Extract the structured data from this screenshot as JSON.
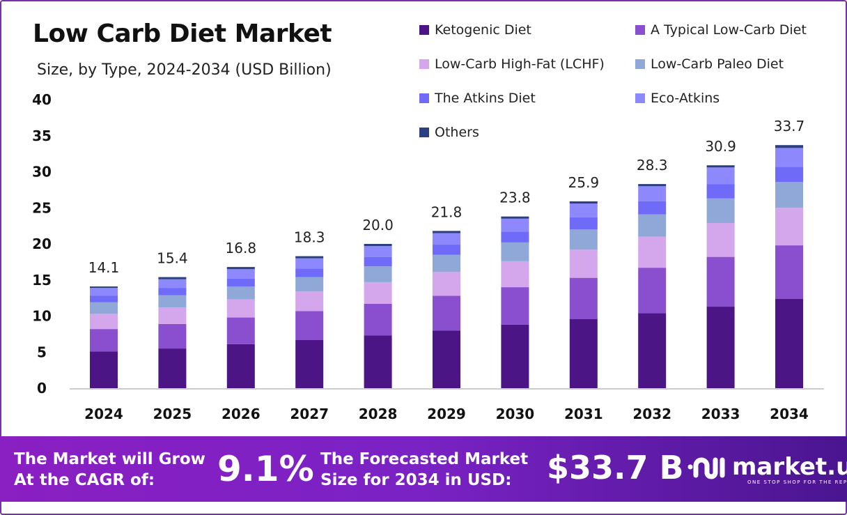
{
  "chart_data": {
    "type": "bar",
    "stacked": true,
    "title": "Low Carb Diet Market",
    "subtitle": "Size, by Type, 2024-2034 (USD Billion)",
    "categories": [
      "2024",
      "2025",
      "2026",
      "2027",
      "2028",
      "2029",
      "2030",
      "2031",
      "2032",
      "2033",
      "2034"
    ],
    "totals": [
      "14.1",
      "15.4",
      "16.8",
      "18.3",
      "20.0",
      "21.8",
      "23.8",
      "25.9",
      "28.3",
      "30.9",
      "33.7"
    ],
    "series": [
      {
        "name": "Ketogenic Diet",
        "color": "#4b1585",
        "values": [
          5.1,
          5.5,
          6.1,
          6.7,
          7.3,
          8.0,
          8.8,
          9.6,
          10.4,
          11.3,
          12.4
        ]
      },
      {
        "name": "A Typical Low-Carb Diet",
        "color": "#8a4fcf",
        "values": [
          3.1,
          3.4,
          3.7,
          4.0,
          4.4,
          4.8,
          5.2,
          5.7,
          6.3,
          6.9,
          7.4
        ]
      },
      {
        "name": "Low-Carb High-Fat (LCHF)",
        "color": "#d4a6ec",
        "values": [
          2.1,
          2.3,
          2.5,
          2.7,
          3.0,
          3.3,
          3.6,
          3.9,
          4.3,
          4.7,
          5.2
        ]
      },
      {
        "name": "Low-Carb Paleo Diet",
        "color": "#8fa8d8",
        "values": [
          1.6,
          1.7,
          1.8,
          2.0,
          2.2,
          2.4,
          2.6,
          2.8,
          3.1,
          3.4,
          3.6
        ]
      },
      {
        "name": "The Atkins Diet",
        "color": "#6f6af8",
        "values": [
          0.9,
          1.0,
          1.1,
          1.2,
          1.3,
          1.4,
          1.5,
          1.7,
          1.8,
          2.0,
          2.1
        ]
      },
      {
        "name": "Eco-Atkins",
        "color": "#8d88fb",
        "values": [
          1.1,
          1.2,
          1.3,
          1.4,
          1.5,
          1.6,
          1.8,
          1.9,
          2.1,
          2.3,
          2.6
        ]
      },
      {
        "name": "Others",
        "color": "#2b4080",
        "values": [
          0.2,
          0.3,
          0.3,
          0.3,
          0.3,
          0.3,
          0.3,
          0.3,
          0.3,
          0.3,
          0.4
        ]
      }
    ],
    "yticks": [
      "0",
      "5",
      "10",
      "15",
      "20",
      "25",
      "30",
      "35",
      "40"
    ],
    "ylim": [
      0,
      40
    ],
    "grid": false,
    "legend": "top-right"
  },
  "banner": {
    "cagr_label": "The Market will Grow At the CAGR of:",
    "cagr_value": "9.1%",
    "forecast_label": "The Forecasted Market Size for 2034 in USD:",
    "forecast_value": "$33.7 B",
    "brand": "market.us",
    "brand_tagline": "ONE STOP SHOP FOR THE REPORTS"
  }
}
